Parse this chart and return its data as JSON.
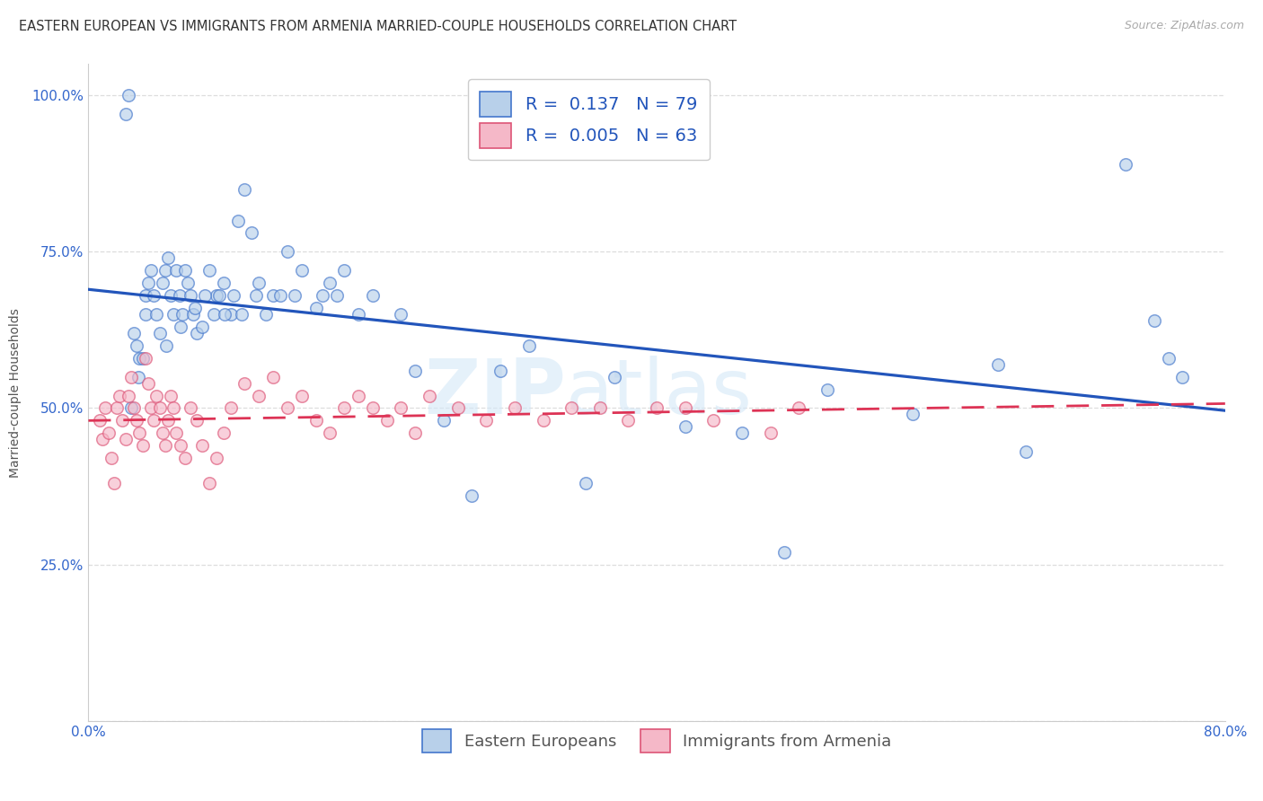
{
  "title": "EASTERN EUROPEAN VS IMMIGRANTS FROM ARMENIA MARRIED-COUPLE HOUSEHOLDS CORRELATION CHART",
  "source": "Source: ZipAtlas.com",
  "ylabel": "Married-couple Households",
  "xlim": [
    0.0,
    0.8
  ],
  "ylim": [
    0.0,
    1.05
  ],
  "xticks": [
    0.0,
    0.8
  ],
  "xticklabels": [
    "0.0%",
    "80.0%"
  ],
  "yticks": [
    0.0,
    0.25,
    0.5,
    0.75,
    1.0
  ],
  "yticklabels": [
    "",
    "25.0%",
    "50.0%",
    "75.0%",
    "100.0%"
  ],
  "blue_R": 0.137,
  "blue_N": 79,
  "pink_R": 0.005,
  "pink_N": 63,
  "blue_fill": "#b8d0ea",
  "pink_fill": "#f5b8c8",
  "blue_edge": "#4477cc",
  "pink_edge": "#dd5577",
  "blue_line": "#2255bb",
  "pink_line": "#dd3355",
  "legend_blue": "Eastern Europeans",
  "legend_pink": "Immigrants from Armenia",
  "watermark": "ZIPatlas",
  "blue_x": [
    0.026,
    0.028,
    0.032,
    0.034,
    0.036,
    0.038,
    0.04,
    0.04,
    0.042,
    0.044,
    0.046,
    0.048,
    0.05,
    0.052,
    0.054,
    0.056,
    0.058,
    0.06,
    0.062,
    0.064,
    0.066,
    0.068,
    0.07,
    0.072,
    0.074,
    0.076,
    0.08,
    0.085,
    0.09,
    0.095,
    0.1,
    0.105,
    0.11,
    0.115,
    0.12,
    0.125,
    0.13,
    0.14,
    0.15,
    0.16,
    0.17,
    0.18,
    0.19,
    0.2,
    0.22,
    0.23,
    0.25,
    0.27,
    0.29,
    0.31,
    0.35,
    0.37,
    0.42,
    0.46,
    0.49,
    0.52,
    0.58,
    0.64,
    0.66,
    0.73,
    0.75,
    0.76,
    0.77,
    0.03,
    0.035,
    0.055,
    0.065,
    0.075,
    0.082,
    0.088,
    0.092,
    0.096,
    0.102,
    0.108,
    0.118,
    0.135,
    0.145,
    0.165,
    0.175
  ],
  "blue_y": [
    0.97,
    1.0,
    0.62,
    0.6,
    0.58,
    0.58,
    0.68,
    0.65,
    0.7,
    0.72,
    0.68,
    0.65,
    0.62,
    0.7,
    0.72,
    0.74,
    0.68,
    0.65,
    0.72,
    0.68,
    0.65,
    0.72,
    0.7,
    0.68,
    0.65,
    0.62,
    0.63,
    0.72,
    0.68,
    0.7,
    0.65,
    0.8,
    0.85,
    0.78,
    0.7,
    0.65,
    0.68,
    0.75,
    0.72,
    0.66,
    0.7,
    0.72,
    0.65,
    0.68,
    0.65,
    0.56,
    0.48,
    0.36,
    0.56,
    0.6,
    0.38,
    0.55,
    0.47,
    0.46,
    0.27,
    0.53,
    0.49,
    0.57,
    0.43,
    0.89,
    0.64,
    0.58,
    0.55,
    0.5,
    0.55,
    0.6,
    0.63,
    0.66,
    0.68,
    0.65,
    0.68,
    0.65,
    0.68,
    0.65,
    0.68,
    0.68,
    0.68,
    0.68,
    0.68
  ],
  "pink_x": [
    0.008,
    0.01,
    0.012,
    0.014,
    0.016,
    0.018,
    0.02,
    0.022,
    0.024,
    0.026,
    0.028,
    0.03,
    0.032,
    0.034,
    0.036,
    0.038,
    0.04,
    0.042,
    0.044,
    0.046,
    0.048,
    0.05,
    0.052,
    0.054,
    0.056,
    0.058,
    0.06,
    0.062,
    0.065,
    0.068,
    0.072,
    0.076,
    0.08,
    0.085,
    0.09,
    0.095,
    0.1,
    0.11,
    0.12,
    0.13,
    0.14,
    0.15,
    0.16,
    0.17,
    0.18,
    0.19,
    0.2,
    0.21,
    0.22,
    0.23,
    0.24,
    0.26,
    0.28,
    0.3,
    0.32,
    0.34,
    0.36,
    0.38,
    0.4,
    0.42,
    0.44,
    0.48,
    0.5
  ],
  "pink_y": [
    0.48,
    0.45,
    0.5,
    0.46,
    0.42,
    0.38,
    0.5,
    0.52,
    0.48,
    0.45,
    0.52,
    0.55,
    0.5,
    0.48,
    0.46,
    0.44,
    0.58,
    0.54,
    0.5,
    0.48,
    0.52,
    0.5,
    0.46,
    0.44,
    0.48,
    0.52,
    0.5,
    0.46,
    0.44,
    0.42,
    0.5,
    0.48,
    0.44,
    0.38,
    0.42,
    0.46,
    0.5,
    0.54,
    0.52,
    0.55,
    0.5,
    0.52,
    0.48,
    0.46,
    0.5,
    0.52,
    0.5,
    0.48,
    0.5,
    0.46,
    0.52,
    0.5,
    0.48,
    0.5,
    0.48,
    0.5,
    0.5,
    0.48,
    0.5,
    0.5,
    0.48,
    0.46,
    0.5
  ],
  "background_color": "#ffffff",
  "grid_color": "#dddddd"
}
